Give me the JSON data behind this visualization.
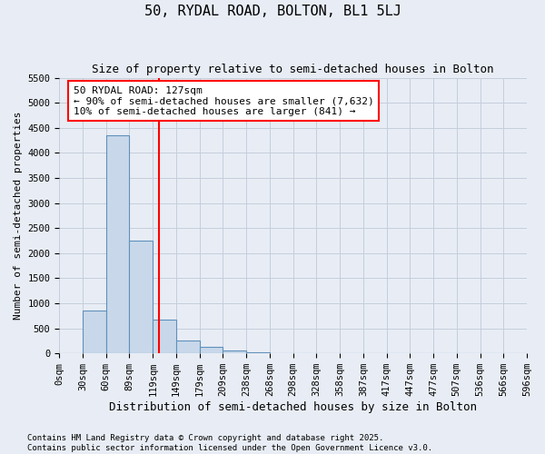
{
  "title": "50, RYDAL ROAD, BOLTON, BL1 5LJ",
  "subtitle": "Size of property relative to semi-detached houses in Bolton",
  "xlabel": "Distribution of semi-detached houses by size in Bolton",
  "ylabel": "Number of semi-detached properties",
  "bin_labels": [
    "0sqm",
    "30sqm",
    "60sqm",
    "89sqm",
    "119sqm",
    "149sqm",
    "179sqm",
    "209sqm",
    "238sqm",
    "268sqm",
    "298sqm",
    "328sqm",
    "358sqm",
    "387sqm",
    "417sqm",
    "447sqm",
    "477sqm",
    "507sqm",
    "536sqm",
    "566sqm",
    "596sqm"
  ],
  "bar_values": [
    10,
    850,
    4350,
    2250,
    670,
    250,
    130,
    60,
    30,
    0,
    0,
    0,
    0,
    0,
    0,
    0,
    0,
    0,
    0,
    0
  ],
  "bar_color": "#c8d8ea",
  "bar_edge_color": "#6090bb",
  "grid_color": "#c5cedc",
  "background_color": "#e8edf5",
  "vline_color": "red",
  "vline_x": 4.267,
  "annotation_text_line1": "50 RYDAL ROAD: 127sqm",
  "annotation_text_line2": "← 90% of semi-detached houses are smaller (7,632)",
  "annotation_text_line3": "10% of semi-detached houses are larger (841) →",
  "annotation_box_color": "white",
  "annotation_box_edge": "red",
  "ylim": [
    0,
    5500
  ],
  "yticks": [
    0,
    500,
    1000,
    1500,
    2000,
    2500,
    3000,
    3500,
    4000,
    4500,
    5000,
    5500
  ],
  "footnote_line1": "Contains HM Land Registry data © Crown copyright and database right 2025.",
  "footnote_line2": "Contains public sector information licensed under the Open Government Licence v3.0.",
  "title_fontsize": 11,
  "subtitle_fontsize": 9,
  "ylabel_fontsize": 8,
  "xlabel_fontsize": 9,
  "tick_fontsize": 7.5,
  "annotation_fontsize": 8,
  "footnote_fontsize": 6.5
}
